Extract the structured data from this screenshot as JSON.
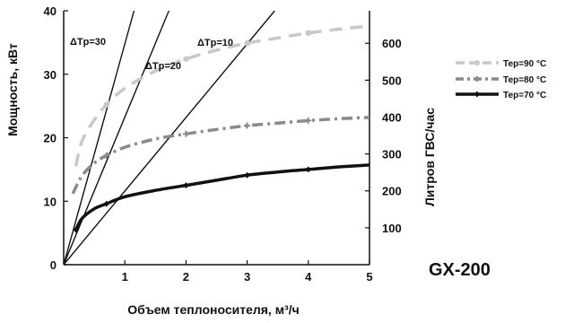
{
  "chart_data": {
    "type": "line",
    "title": "",
    "model_label": "GX-200",
    "xlabel": "Объем теплоносителя, м³/ч",
    "ylabel": "Мощность, кВт",
    "y2label": "Литров ГВС/час",
    "xlim": [
      0,
      5
    ],
    "ylim": [
      0,
      40
    ],
    "y2lim": [
      0,
      688
    ],
    "x_ticks": [
      "1",
      "2",
      "3",
      "4",
      "5"
    ],
    "y_ticks": [
      "0",
      "10",
      "20",
      "30",
      "40"
    ],
    "y2_ticks": [
      "100",
      "200",
      "300",
      "400",
      "500",
      "600"
    ],
    "series": [
      {
        "name": "Тер=90 °С",
        "color": "#c8c8c8",
        "style": "dashed",
        "x": [
          0.2,
          0.3,
          0.5,
          0.7,
          1.0,
          1.5,
          2.0,
          2.5,
          3.0,
          3.5,
          4.0,
          4.5,
          5.0
        ],
        "y": [
          15.5,
          19.5,
          22.8,
          25.2,
          27.8,
          30.5,
          32.4,
          33.8,
          34.9,
          35.7,
          36.5,
          37.1,
          37.6
        ],
        "markers_x": [
          0.7,
          2.0,
          3.0,
          4.0
        ]
      },
      {
        "name": "Тер=80 °С",
        "color": "#8a8a8a",
        "style": "dashdot",
        "x": [
          0.15,
          0.3,
          0.5,
          0.7,
          1.0,
          1.5,
          2.0,
          2.5,
          3.0,
          3.5,
          4.0,
          4.5,
          5.0
        ],
        "y": [
          11.2,
          14.0,
          16.0,
          17.2,
          18.5,
          19.8,
          20.6,
          21.3,
          21.9,
          22.3,
          22.7,
          23.0,
          23.2
        ],
        "markers_x": [
          0.7,
          2.0,
          3.0,
          4.0
        ]
      },
      {
        "name": "Тер=70 °С",
        "color": "#111111",
        "style": "solid",
        "x": [
          0.2,
          0.3,
          0.5,
          0.7,
          1.0,
          1.5,
          2.0,
          2.5,
          3.0,
          3.5,
          4.0,
          4.5,
          5.0
        ],
        "y": [
          5.5,
          7.3,
          8.8,
          9.6,
          10.7,
          11.7,
          12.5,
          13.3,
          14.1,
          14.6,
          15.0,
          15.4,
          15.7
        ],
        "markers_x": [
          0.2,
          0.7,
          2.0,
          3.0,
          4.0
        ]
      }
    ],
    "reference_lines": [
      {
        "label": "ΔTр=30",
        "x": [
          0,
          1.15
        ],
        "y": [
          0,
          40
        ]
      },
      {
        "label": "ΔTр=20",
        "x": [
          0,
          1.72
        ],
        "y": [
          0,
          40
        ]
      },
      {
        "label": "ΔTр=10",
        "x": [
          0,
          3.45
        ],
        "y": [
          0,
          40
        ]
      }
    ],
    "grid": false,
    "legend_position": "right"
  }
}
